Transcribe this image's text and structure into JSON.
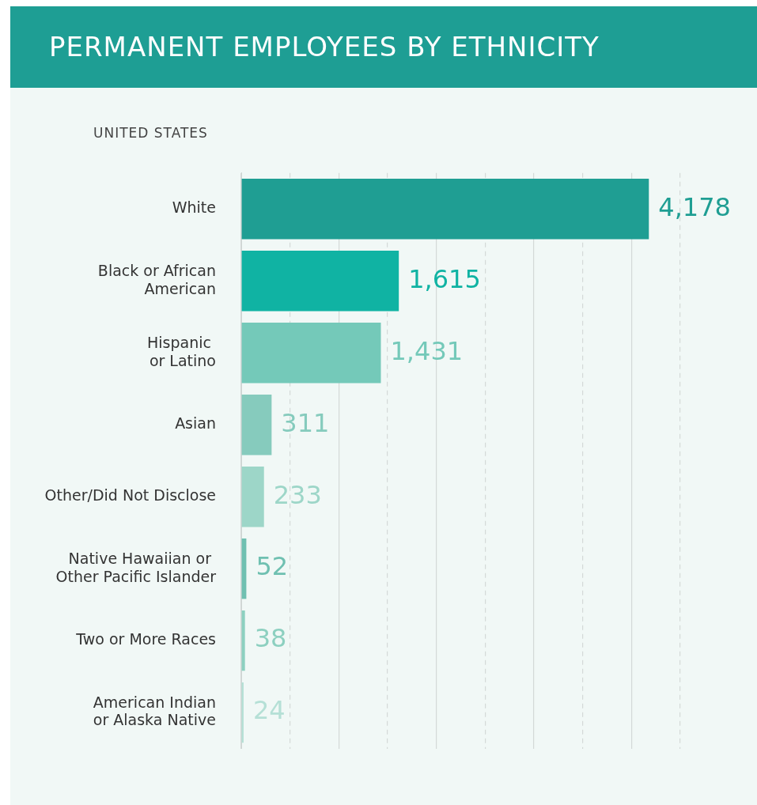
{
  "chart_data": {
    "type": "bar",
    "orientation": "horizontal",
    "title": "PERMANENT EMPLOYEES BY ETHNICITY",
    "subtitle": "UNITED STATES",
    "categories": [
      "White",
      "Black or African\nAmerican",
      "Hispanic \nor Latino",
      "Asian",
      "Other/Did Not Disclose",
      "Native Hawaiian or \nOther Pacific Islander",
      "Two or More Races",
      "American Indian\nor Alaska Native"
    ],
    "values": [
      4178,
      1615,
      1431,
      311,
      233,
      52,
      38,
      24
    ],
    "colors": [
      "#1f9e93",
      "#10b3a3",
      "#74c9b9",
      "#86cbbd",
      "#9dd6c8",
      "#6fc0b1",
      "#8dd0c0",
      "#b5e0d6"
    ],
    "value_labels": [
      "4,178",
      "1,615",
      "1,431",
      "311",
      "233",
      "52",
      "38",
      "24"
    ],
    "xlim": [
      0,
      4500
    ],
    "xticks": [
      {
        "value": 0,
        "label": null
      },
      {
        "value": 500,
        "label": null
      },
      {
        "value": 1000,
        "label": null
      },
      {
        "value": 1500,
        "label": null
      },
      {
        "value": 2000,
        "label": null
      },
      {
        "value": 2500,
        "label": null
      },
      {
        "value": 3000,
        "label": null
      },
      {
        "value": 3500,
        "label": null
      },
      {
        "value": 4000,
        "label": null
      },
      {
        "value": 4500,
        "label": null
      }
    ],
    "grid": "x",
    "legend": false,
    "tick_labels": "y"
  }
}
